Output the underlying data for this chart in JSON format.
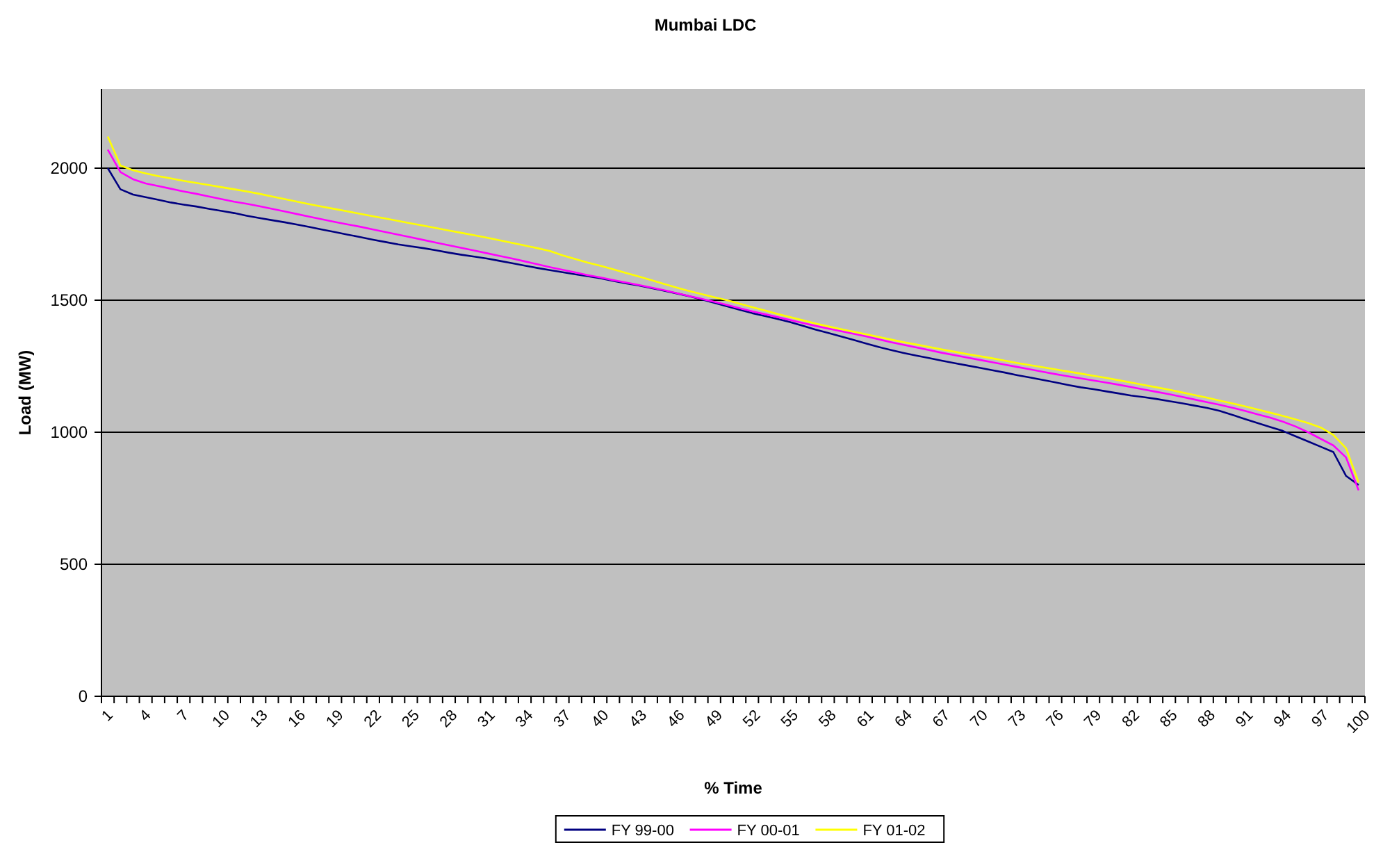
{
  "chart_data": {
    "type": "line",
    "title": "Mumbai LDC",
    "xlabel": "% Time",
    "ylabel": "Load (MW)",
    "categories": [
      "1",
      null,
      null,
      "4",
      null,
      null,
      "7",
      null,
      null,
      "10",
      null,
      null,
      "13",
      null,
      null,
      "16",
      null,
      null,
      "19",
      null,
      null,
      "22",
      null,
      null,
      "25",
      null,
      null,
      "28",
      null,
      null,
      "31",
      null,
      null,
      "34",
      null,
      null,
      "37",
      null,
      null,
      "40",
      null,
      null,
      "43",
      null,
      null,
      "46",
      null,
      null,
      "49",
      null,
      null,
      "52",
      null,
      null,
      "55",
      null,
      null,
      "58",
      null,
      null,
      "61",
      null,
      null,
      "64",
      null,
      null,
      "67",
      null,
      null,
      "70",
      null,
      null,
      "73",
      null,
      null,
      "76",
      null,
      null,
      "79",
      null,
      null,
      "82",
      null,
      null,
      "85",
      null,
      null,
      "88",
      null,
      null,
      "91",
      null,
      null,
      "94",
      null,
      null,
      "97",
      null,
      null,
      "100"
    ],
    "ylim": [
      0,
      2300
    ],
    "yticks": [
      0,
      500,
      1000,
      1500,
      2000
    ],
    "grid": "y",
    "legend": "bottom",
    "marker": "none",
    "line_style": "solid",
    "series": [
      {
        "name": "FY 99-00",
        "color": "#000080",
        "values": [
          2000,
          1920,
          1900,
          1890,
          1880,
          1870,
          1862,
          1855,
          1846,
          1838,
          1830,
          1820,
          1811,
          1803,
          1795,
          1786,
          1777,
          1767,
          1758,
          1748,
          1739,
          1729,
          1720,
          1711,
          1704,
          1697,
          1689,
          1680,
          1672,
          1665,
          1658,
          1649,
          1640,
          1631,
          1622,
          1614,
          1606,
          1598,
          1591,
          1583,
          1573,
          1564,
          1556,
          1546,
          1536,
          1526,
          1515,
          1503,
          1490,
          1477,
          1464,
          1451,
          1440,
          1429,
          1417,
          1403,
          1389,
          1376,
          1363,
          1350,
          1336,
          1323,
          1311,
          1300,
          1290,
          1281,
          1271,
          1262,
          1253,
          1244,
          1235,
          1226,
          1216,
          1207,
          1198,
          1189,
          1179,
          1170,
          1163,
          1155,
          1147,
          1139,
          1133,
          1126,
          1118,
          1110,
          1101,
          1092,
          1081,
          1066,
          1050,
          1035,
          1020,
          1005,
          985,
          965,
          945,
          925,
          835,
          800
        ]
      },
      {
        "name": "FY 00-01",
        "color": "#ff00ff",
        "values": [
          2070,
          1985,
          1958,
          1942,
          1932,
          1922,
          1912,
          1903,
          1893,
          1883,
          1873,
          1865,
          1856,
          1846,
          1836,
          1826,
          1816,
          1806,
          1796,
          1787,
          1778,
          1768,
          1758,
          1748,
          1738,
          1728,
          1718,
          1708,
          1698,
          1688,
          1678,
          1668,
          1658,
          1647,
          1636,
          1625,
          1615,
          1605,
          1595,
          1586,
          1576,
          1567,
          1558,
          1548,
          1538,
          1527,
          1516,
          1505,
          1494,
          1482,
          1470,
          1458,
          1447,
          1436,
          1425,
          1414,
          1403,
          1393,
          1383,
          1373,
          1363,
          1352,
          1341,
          1331,
          1321,
          1311,
          1301,
          1292,
          1283,
          1274,
          1265,
          1256,
          1247,
          1238,
          1229,
          1220,
          1212,
          1204,
          1196,
          1188,
          1180,
          1171,
          1162,
          1153,
          1144,
          1134,
          1124,
          1114,
          1104,
          1093,
          1081,
          1068,
          1055,
          1040,
          1022,
          1000,
          975,
          950,
          905,
          780
        ]
      },
      {
        "name": "FY 01-02",
        "color": "#ffff00",
        "values": [
          2120,
          2010,
          1992,
          1980,
          1970,
          1961,
          1952,
          1944,
          1936,
          1928,
          1920,
          1912,
          1903,
          1893,
          1883,
          1873,
          1863,
          1854,
          1845,
          1836,
          1827,
          1818,
          1809,
          1800,
          1791,
          1782,
          1773,
          1764,
          1755,
          1746,
          1737,
          1727,
          1717,
          1707,
          1697,
          1686,
          1670,
          1656,
          1642,
          1630,
          1617,
          1603,
          1590,
          1576,
          1562,
          1548,
          1535,
          1523,
          1511,
          1500,
          1487,
          1474,
          1461,
          1448,
          1436,
          1424,
          1412,
          1401,
          1391,
          1381,
          1371,
          1361,
          1351,
          1341,
          1332,
          1323,
          1314,
          1305,
          1296,
          1288,
          1280,
          1271,
          1262,
          1254,
          1246,
          1238,
          1230,
          1222,
          1214,
          1206,
          1197,
          1188,
          1179,
          1170,
          1161,
          1151,
          1141,
          1131,
          1120,
          1109,
          1098,
          1086,
          1074,
          1062,
          1049,
          1035,
          1018,
          990,
          940,
          810
        ]
      }
    ]
  }
}
